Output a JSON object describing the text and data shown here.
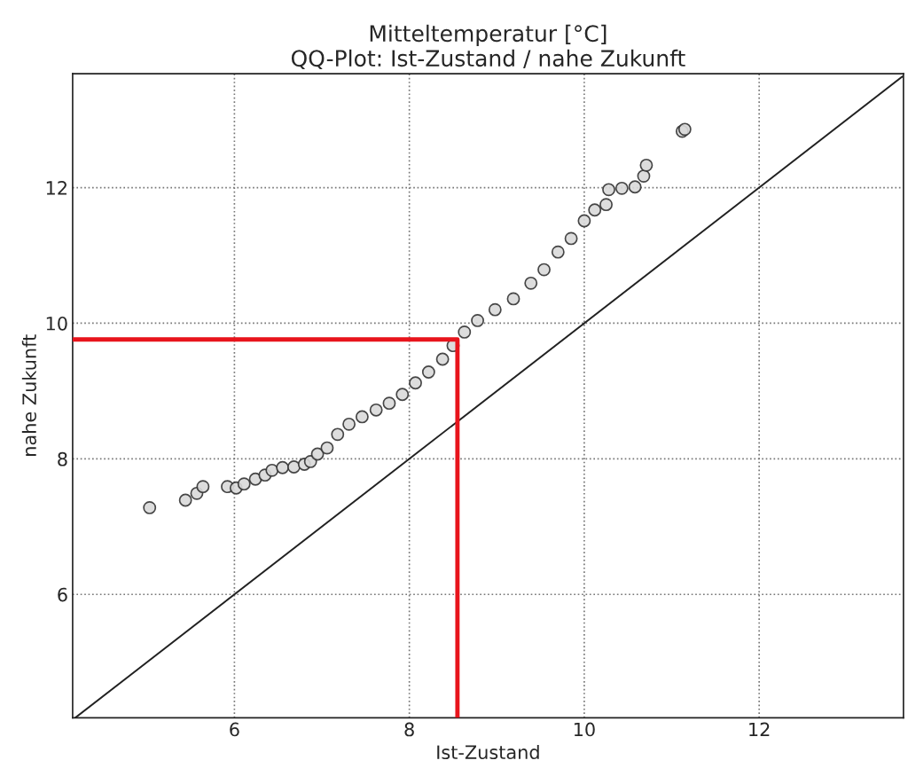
{
  "chart_data": {
    "type": "scatter",
    "title": "Mitteltemperatur [°C]\nQQ-Plot: Ist-Zustand / nahe Zukunft",
    "xlabel": "Ist-Zustand",
    "ylabel": "nahe Zukunft",
    "xlim": [
      4.15,
      13.65
    ],
    "ylim": [
      4.18,
      13.68
    ],
    "xticks": [
      6,
      8,
      10,
      12
    ],
    "yticks": [
      6,
      8,
      10,
      12
    ],
    "grid": true,
    "series": [
      {
        "marker": "circle",
        "color": "#d9d9d9",
        "x": [
          5.03,
          5.44,
          5.57,
          5.64,
          5.92,
          6.02,
          6.11,
          6.24,
          6.35,
          6.43,
          6.55,
          6.68,
          6.8,
          6.87,
          6.95,
          7.06,
          7.18,
          7.31,
          7.46,
          7.62,
          7.77,
          7.92,
          8.07,
          8.22,
          8.38,
          8.5,
          8.63,
          8.78,
          8.98,
          9.19,
          9.39,
          9.54,
          9.7,
          9.85,
          10.0,
          10.12,
          10.25,
          10.28,
          10.43,
          10.58,
          10.68,
          10.71,
          11.12,
          11.15
        ],
        "values": [
          7.28,
          7.39,
          7.49,
          7.59,
          7.59,
          7.57,
          7.63,
          7.7,
          7.76,
          7.83,
          7.87,
          7.88,
          7.92,
          7.96,
          8.07,
          8.16,
          8.36,
          8.51,
          8.62,
          8.72,
          8.82,
          8.95,
          9.12,
          9.28,
          9.47,
          9.67,
          9.87,
          10.04,
          10.2,
          10.36,
          10.59,
          10.79,
          11.05,
          11.25,
          11.51,
          11.67,
          11.75,
          11.97,
          11.99,
          12.01,
          12.17,
          12.33,
          12.83,
          12.86
        ]
      },
      {
        "type": "line",
        "marker": "none",
        "color": "#222222",
        "line_style": "solid",
        "x": [
          4.18,
          13.65
        ],
        "values": [
          4.18,
          13.65
        ]
      },
      {
        "type": "line",
        "marker": "none",
        "color": "#e8141c",
        "line_style": "solid",
        "x": [
          4.15,
          8.55,
          8.55
        ],
        "values": [
          9.76,
          9.76,
          4.18
        ]
      }
    ]
  }
}
